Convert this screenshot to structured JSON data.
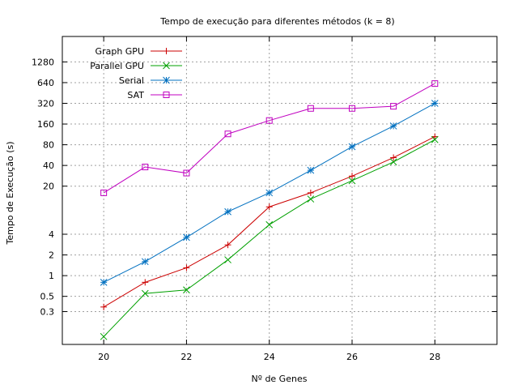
{
  "chart_data": {
    "type": "line",
    "title": "Tempo de execução para diferentes métodos (k = 8)",
    "xlabel": "Nº de Genes",
    "ylabel": "Tempo de Execução (s)",
    "xlim": [
      19,
      29.5
    ],
    "ylim": [
      0.1,
      3000
    ],
    "y_scale": "log",
    "grid": true,
    "legend_position": "top-left",
    "x_ticks": [
      20,
      22,
      24,
      26,
      28
    ],
    "x_tick_labels": [
      "20",
      "22",
      "24",
      "26",
      "28"
    ],
    "y_ticks": [
      0.3,
      0.5,
      1,
      2,
      4,
      20,
      40,
      80,
      160,
      320,
      640,
      1280
    ],
    "y_tick_labels": [
      "0.3",
      "0.5",
      "1",
      "2",
      "4",
      "20",
      "40",
      "80",
      "160",
      "320",
      "640",
      "1280"
    ],
    "x": [
      20,
      21,
      22,
      23,
      24,
      25,
      26,
      27,
      28
    ],
    "series": [
      {
        "name": "Graph GPU",
        "color": "#cc0000",
        "marker": "plus",
        "values": [
          0.35,
          0.8,
          1.3,
          2.8,
          10,
          16,
          28,
          52,
          105
        ]
      },
      {
        "name": "Parallel GPU",
        "color": "#00a000",
        "marker": "cross",
        "values": [
          0.13,
          0.55,
          0.62,
          1.7,
          5.5,
          13,
          24,
          45,
          95
        ]
      },
      {
        "name": "Serial",
        "color": "#0070c0",
        "marker": "star",
        "values": [
          0.8,
          1.6,
          3.6,
          8.5,
          16,
          34,
          75,
          150,
          320
        ]
      },
      {
        "name": "SAT",
        "color": "#c000c0",
        "marker": "square",
        "values": [
          16,
          38,
          31,
          115,
          180,
          270,
          270,
          290,
          620
        ]
      }
    ]
  }
}
